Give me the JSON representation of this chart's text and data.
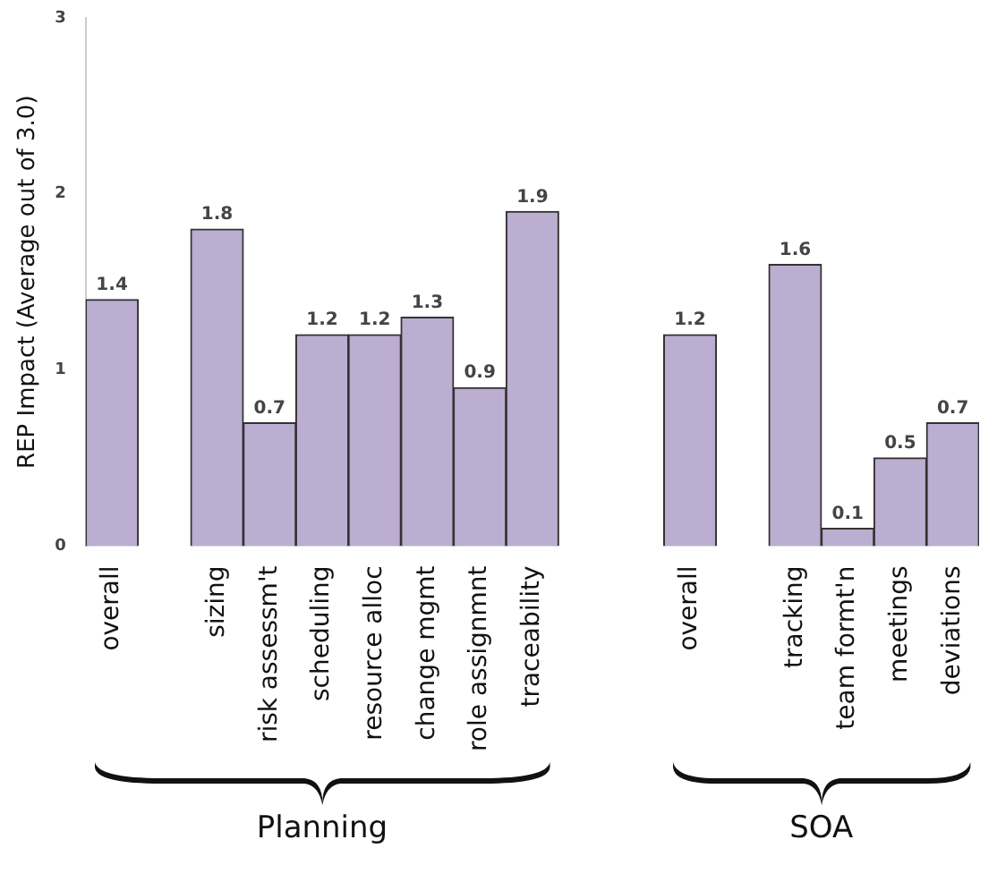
{
  "chart_data": {
    "type": "bar",
    "ylabel": "REP Impact (Average out of 3.0)",
    "categories": [
      "overall",
      null,
      "sizing",
      "risk assessm't",
      "scheduling",
      "resource alloc",
      "change mgmt",
      "role assignmnt",
      "traceability",
      null,
      null,
      "overall",
      null,
      "tracking",
      "team formt'n",
      "meetings",
      "deviations"
    ],
    "values": [
      1.4,
      null,
      1.8,
      0.7,
      1.2,
      1.2,
      1.3,
      0.9,
      1.9,
      null,
      null,
      1.2,
      null,
      1.6,
      0.1,
      0.5,
      0.7
    ],
    "color": "#bcaed0",
    "ylim": [
      0,
      3
    ],
    "yticks": [
      0,
      1,
      2,
      3
    ],
    "grid": false,
    "legend": false,
    "data_labels": true,
    "annotations": [
      "Planning",
      "SOA"
    ]
  }
}
